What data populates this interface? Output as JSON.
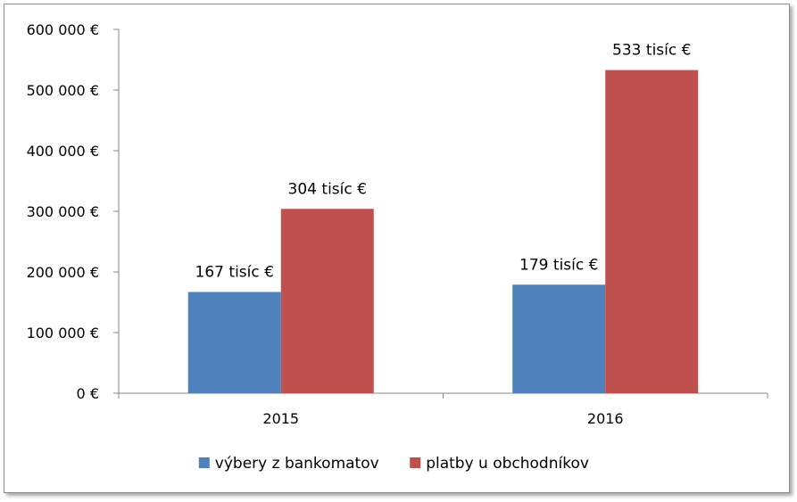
{
  "chart_data": {
    "type": "bar",
    "categories": [
      "2015",
      "2016"
    ],
    "series": [
      {
        "name": "výbery z bankomatov",
        "color": "#4f81bd",
        "values": [
          167000,
          179000
        ],
        "labels": [
          "167 tisíc €",
          "179 tisíc €"
        ]
      },
      {
        "name": "platby u obchodníkov",
        "color": "#c0504d",
        "values": [
          304000,
          533000
        ],
        "labels": [
          "304 tisíc €",
          "533 tisíc €"
        ]
      }
    ],
    "ylim": [
      0,
      600000
    ],
    "yticks": [
      0,
      100000,
      200000,
      300000,
      400000,
      500000,
      600000
    ],
    "ytick_labels": [
      "0 €",
      "100 000 €",
      "200 000 €",
      "300 000 €",
      "400 000 €",
      "500 000 €",
      "600 000 €"
    ],
    "grid": false,
    "legend_position": "bottom"
  }
}
